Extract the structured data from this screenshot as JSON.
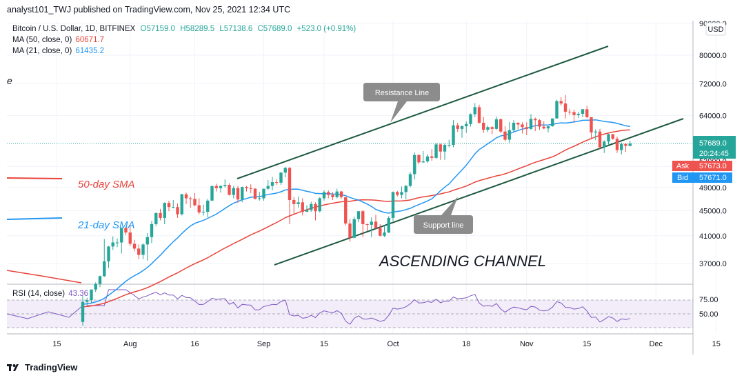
{
  "header": {
    "published": "analyst101_TWJ published on TradingView.com, Nov 25, 2021 12:34 UTC"
  },
  "legend": {
    "symbol": "Bitcoin / U.S. Dollar, 1D, BITFINEX",
    "open": "O57159.0",
    "high": "H58289.5",
    "low": "L57138.6",
    "close": "C57689.0",
    "change": "+523.0 (+0.91%)",
    "ma50_label": "MA (50, close, 0)",
    "ma50_value": "60671.7",
    "ma21_label": "MA (21, close, 0)",
    "ma21_value": "61435.2",
    "rsi_label": "RSI (14, close)",
    "rsi_value": "43.36"
  },
  "price_scale": {
    "currency": "USD",
    "price_tag": "57689.0",
    "countdown": "20:24:45",
    "ask_label": "Ask",
    "ask_value": "57673.0",
    "bid_label": "Bid",
    "bid_value": "57671.0"
  },
  "annotations": {
    "resistance": "Resistance Line",
    "support": "Support line",
    "channel": "ASCENDING CHANNEL",
    "sma50": "50-day SMA",
    "sma21": "21-day SMA"
  },
  "colors": {
    "up": "#26a69a",
    "down": "#ef5350",
    "ma50": "#e8433a",
    "ma21": "#2196f3",
    "rsi": "#7e57c2",
    "channel": "#1e5a40",
    "ask": "#ef5350",
    "bid": "#2196f3",
    "price_tag": "#26a69a"
  },
  "footer": {
    "brand": "TradingView"
  },
  "chart_data": {
    "type": "candlestick",
    "title": "Bitcoin / U.S. Dollar, 1D, BITFINEX",
    "y_axis": {
      "ticks": [
        37000,
        41000,
        45000,
        49000,
        53000,
        57689,
        64000,
        72000,
        80000,
        90000
      ],
      "scale": "log"
    },
    "x_axis": {
      "ticks": [
        "15",
        "Aug",
        "16",
        "Sep",
        "15",
        "Oct",
        "18",
        "Nov",
        "15",
        "Dec",
        "15"
      ]
    },
    "rsi_axis": {
      "ticks": [
        50,
        75
      ]
    },
    "candles": [
      {
        "date": "2021-07-21",
        "o": 29800,
        "h": 32800,
        "l": 29400,
        "c": 32100
      },
      {
        "date": "2021-07-22",
        "o": 32100,
        "h": 32600,
        "l": 31700,
        "c": 32300
      },
      {
        "date": "2021-07-23",
        "o": 32300,
        "h": 33600,
        "l": 31900,
        "c": 33600
      },
      {
        "date": "2021-07-24",
        "o": 33600,
        "h": 34500,
        "l": 33300,
        "c": 34300
      },
      {
        "date": "2021-07-25",
        "o": 34300,
        "h": 35400,
        "l": 33900,
        "c": 35300
      },
      {
        "date": "2021-07-26",
        "o": 35300,
        "h": 40500,
        "l": 35200,
        "c": 37300
      },
      {
        "date": "2021-07-27",
        "o": 37300,
        "h": 39500,
        "l": 36400,
        "c": 39400
      },
      {
        "date": "2021-07-28",
        "o": 39400,
        "h": 40900,
        "l": 38900,
        "c": 40000
      },
      {
        "date": "2021-07-29",
        "o": 40000,
        "h": 40600,
        "l": 39300,
        "c": 40000
      },
      {
        "date": "2021-07-30",
        "o": 40000,
        "h": 42300,
        "l": 38400,
        "c": 42200
      },
      {
        "date": "2021-07-31",
        "o": 42200,
        "h": 42400,
        "l": 41100,
        "c": 41500
      },
      {
        "date": "2021-08-01",
        "o": 41500,
        "h": 42600,
        "l": 39500,
        "c": 39800
      },
      {
        "date": "2021-08-02",
        "o": 39800,
        "h": 40400,
        "l": 38700,
        "c": 39100
      },
      {
        "date": "2021-08-03",
        "o": 39100,
        "h": 39700,
        "l": 37600,
        "c": 38200
      },
      {
        "date": "2021-08-04",
        "o": 38200,
        "h": 39900,
        "l": 37600,
        "c": 39700
      },
      {
        "date": "2021-08-05",
        "o": 39700,
        "h": 41400,
        "l": 37400,
        "c": 40800
      },
      {
        "date": "2021-08-06",
        "o": 40800,
        "h": 43300,
        "l": 39900,
        "c": 42800
      },
      {
        "date": "2021-08-07",
        "o": 42800,
        "h": 44700,
        "l": 42500,
        "c": 44600
      },
      {
        "date": "2021-08-08",
        "o": 44600,
        "h": 45300,
        "l": 43400,
        "c": 43800
      },
      {
        "date": "2021-08-09",
        "o": 43800,
        "h": 46400,
        "l": 42800,
        "c": 46300
      },
      {
        "date": "2021-08-10",
        "o": 46300,
        "h": 46700,
        "l": 44900,
        "c": 45600
      },
      {
        "date": "2021-08-11",
        "o": 45600,
        "h": 46800,
        "l": 45400,
        "c": 45600
      },
      {
        "date": "2021-08-12",
        "o": 45600,
        "h": 46200,
        "l": 43800,
        "c": 44400
      },
      {
        "date": "2021-08-13",
        "o": 44400,
        "h": 47900,
        "l": 44200,
        "c": 47800
      },
      {
        "date": "2021-08-14",
        "o": 47800,
        "h": 48100,
        "l": 46100,
        "c": 47100
      },
      {
        "date": "2021-08-15",
        "o": 47100,
        "h": 47400,
        "l": 45500,
        "c": 47000
      },
      {
        "date": "2021-08-16",
        "o": 47000,
        "h": 48000,
        "l": 45700,
        "c": 45900
      },
      {
        "date": "2021-08-17",
        "o": 45900,
        "h": 47100,
        "l": 44400,
        "c": 44700
      },
      {
        "date": "2021-08-18",
        "o": 44700,
        "h": 46000,
        "l": 44200,
        "c": 44800
      },
      {
        "date": "2021-08-19",
        "o": 44800,
        "h": 47000,
        "l": 43900,
        "c": 46700
      },
      {
        "date": "2021-08-20",
        "o": 46700,
        "h": 49300,
        "l": 46600,
        "c": 49300
      },
      {
        "date": "2021-08-21",
        "o": 49300,
        "h": 49700,
        "l": 48300,
        "c": 48900
      },
      {
        "date": "2021-08-22",
        "o": 48900,
        "h": 49400,
        "l": 48100,
        "c": 49300
      },
      {
        "date": "2021-08-23",
        "o": 49300,
        "h": 50500,
        "l": 49000,
        "c": 49500
      },
      {
        "date": "2021-08-24",
        "o": 49500,
        "h": 49800,
        "l": 47600,
        "c": 47700
      },
      {
        "date": "2021-08-25",
        "o": 47700,
        "h": 49300,
        "l": 47100,
        "c": 48900
      },
      {
        "date": "2021-08-26",
        "o": 48900,
        "h": 49300,
        "l": 46300,
        "c": 46900
      },
      {
        "date": "2021-08-27",
        "o": 46900,
        "h": 49200,
        "l": 46400,
        "c": 49100
      },
      {
        "date": "2021-08-28",
        "o": 49100,
        "h": 49300,
        "l": 48300,
        "c": 48900
      },
      {
        "date": "2021-08-29",
        "o": 48900,
        "h": 49600,
        "l": 48000,
        "c": 48800
      },
      {
        "date": "2021-08-30",
        "o": 48800,
        "h": 48900,
        "l": 46900,
        "c": 47000
      },
      {
        "date": "2021-08-31",
        "o": 47000,
        "h": 48200,
        "l": 46700,
        "c": 47100
      },
      {
        "date": "2021-09-01",
        "o": 47100,
        "h": 48800,
        "l": 46700,
        "c": 48800
      },
      {
        "date": "2021-09-02",
        "o": 48800,
        "h": 50400,
        "l": 48600,
        "c": 49300
      },
      {
        "date": "2021-09-03",
        "o": 49300,
        "h": 51000,
        "l": 48500,
        "c": 50000
      },
      {
        "date": "2021-09-04",
        "o": 50000,
        "h": 50500,
        "l": 49500,
        "c": 49900
      },
      {
        "date": "2021-09-05",
        "o": 49900,
        "h": 51900,
        "l": 49500,
        "c": 51800
      },
      {
        "date": "2021-09-06",
        "o": 51800,
        "h": 52900,
        "l": 50900,
        "c": 52700
      },
      {
        "date": "2021-09-07",
        "o": 52700,
        "h": 52900,
        "l": 42800,
        "c": 46800
      },
      {
        "date": "2021-09-08",
        "o": 46800,
        "h": 47300,
        "l": 44400,
        "c": 46100
      },
      {
        "date": "2021-09-09",
        "o": 46100,
        "h": 47400,
        "l": 45500,
        "c": 46400
      },
      {
        "date": "2021-09-10",
        "o": 46400,
        "h": 47100,
        "l": 44200,
        "c": 44800
      },
      {
        "date": "2021-09-11",
        "o": 44800,
        "h": 45900,
        "l": 44800,
        "c": 45100
      },
      {
        "date": "2021-09-12",
        "o": 45100,
        "h": 46500,
        "l": 44800,
        "c": 46100
      },
      {
        "date": "2021-09-13",
        "o": 46100,
        "h": 46400,
        "l": 43400,
        "c": 44900
      },
      {
        "date": "2021-09-14",
        "o": 44900,
        "h": 47300,
        "l": 44700,
        "c": 47100
      },
      {
        "date": "2021-09-15",
        "o": 47100,
        "h": 48500,
        "l": 46700,
        "c": 48200
      },
      {
        "date": "2021-09-16",
        "o": 48200,
        "h": 48500,
        "l": 47100,
        "c": 47700
      },
      {
        "date": "2021-09-17",
        "o": 47700,
        "h": 48200,
        "l": 46800,
        "c": 47300
      },
      {
        "date": "2021-09-18",
        "o": 47300,
        "h": 48800,
        "l": 47100,
        "c": 48300
      },
      {
        "date": "2021-09-19",
        "o": 48300,
        "h": 48400,
        "l": 47000,
        "c": 47300
      },
      {
        "date": "2021-09-20",
        "o": 47300,
        "h": 47300,
        "l": 42600,
        "c": 42900
      },
      {
        "date": "2021-09-21",
        "o": 42900,
        "h": 43600,
        "l": 40100,
        "c": 40700
      },
      {
        "date": "2021-09-22",
        "o": 40700,
        "h": 44000,
        "l": 40600,
        "c": 43600
      },
      {
        "date": "2021-09-23",
        "o": 43600,
        "h": 44900,
        "l": 43100,
        "c": 44900
      },
      {
        "date": "2021-09-24",
        "o": 44900,
        "h": 45100,
        "l": 40800,
        "c": 42800
      },
      {
        "date": "2021-09-25",
        "o": 42800,
        "h": 42900,
        "l": 41700,
        "c": 42700
      },
      {
        "date": "2021-09-26",
        "o": 42700,
        "h": 43900,
        "l": 40800,
        "c": 43200
      },
      {
        "date": "2021-09-27",
        "o": 43200,
        "h": 44300,
        "l": 42100,
        "c": 42200
      },
      {
        "date": "2021-09-28",
        "o": 42200,
        "h": 42800,
        "l": 40900,
        "c": 41000
      },
      {
        "date": "2021-09-29",
        "o": 41000,
        "h": 42600,
        "l": 40800,
        "c": 41500
      },
      {
        "date": "2021-09-30",
        "o": 41500,
        "h": 44100,
        "l": 41400,
        "c": 43800
      },
      {
        "date": "2021-10-01",
        "o": 43800,
        "h": 48300,
        "l": 43300,
        "c": 48200
      },
      {
        "date": "2021-10-02",
        "o": 48200,
        "h": 48400,
        "l": 47400,
        "c": 47700
      },
      {
        "date": "2021-10-03",
        "o": 47700,
        "h": 49200,
        "l": 47100,
        "c": 48200
      },
      {
        "date": "2021-10-04",
        "o": 48200,
        "h": 49500,
        "l": 46900,
        "c": 49300
      },
      {
        "date": "2021-10-05",
        "o": 49300,
        "h": 51900,
        "l": 49100,
        "c": 51500
      },
      {
        "date": "2021-10-06",
        "o": 51500,
        "h": 55800,
        "l": 50500,
        "c": 55300
      },
      {
        "date": "2021-10-07",
        "o": 55300,
        "h": 55400,
        "l": 53400,
        "c": 53800
      },
      {
        "date": "2021-10-08",
        "o": 53800,
        "h": 56100,
        "l": 53700,
        "c": 54000
      },
      {
        "date": "2021-10-09",
        "o": 54000,
        "h": 55500,
        "l": 53700,
        "c": 55000
      },
      {
        "date": "2021-10-10",
        "o": 55000,
        "h": 56500,
        "l": 54100,
        "c": 54700
      },
      {
        "date": "2021-10-11",
        "o": 54700,
        "h": 57800,
        "l": 54500,
        "c": 57500
      },
      {
        "date": "2021-10-12",
        "o": 57500,
        "h": 57700,
        "l": 54300,
        "c": 56000
      },
      {
        "date": "2021-10-13",
        "o": 56000,
        "h": 57700,
        "l": 54300,
        "c": 57400
      },
      {
        "date": "2021-10-14",
        "o": 57400,
        "h": 58500,
        "l": 56900,
        "c": 57400
      },
      {
        "date": "2021-10-15",
        "o": 57400,
        "h": 62900,
        "l": 56900,
        "c": 61700
      },
      {
        "date": "2021-10-16",
        "o": 61700,
        "h": 62300,
        "l": 60200,
        "c": 60900
      },
      {
        "date": "2021-10-17",
        "o": 60900,
        "h": 61700,
        "l": 58900,
        "c": 61500
      },
      {
        "date": "2021-10-18",
        "o": 61500,
        "h": 62600,
        "l": 60000,
        "c": 62000
      },
      {
        "date": "2021-10-19",
        "o": 62000,
        "h": 64500,
        "l": 61400,
        "c": 64300
      },
      {
        "date": "2021-10-20",
        "o": 64300,
        "h": 67000,
        "l": 63600,
        "c": 66000
      },
      {
        "date": "2021-10-21",
        "o": 66000,
        "h": 66600,
        "l": 62100,
        "c": 62300
      },
      {
        "date": "2021-10-22",
        "o": 62300,
        "h": 63700,
        "l": 60000,
        "c": 60700
      },
      {
        "date": "2021-10-23",
        "o": 60700,
        "h": 61700,
        "l": 60200,
        "c": 61300
      },
      {
        "date": "2021-10-24",
        "o": 61300,
        "h": 61500,
        "l": 59700,
        "c": 60900
      },
      {
        "date": "2021-10-25",
        "o": 60900,
        "h": 63700,
        "l": 60700,
        "c": 63100
      },
      {
        "date": "2021-10-26",
        "o": 63100,
        "h": 63300,
        "l": 60000,
        "c": 60300
      },
      {
        "date": "2021-10-27",
        "o": 60300,
        "h": 61500,
        "l": 58100,
        "c": 58500
      },
      {
        "date": "2021-10-28",
        "o": 58500,
        "h": 62500,
        "l": 57800,
        "c": 60600
      },
      {
        "date": "2021-10-29",
        "o": 60600,
        "h": 62900,
        "l": 60300,
        "c": 62300
      },
      {
        "date": "2021-10-30",
        "o": 62300,
        "h": 62400,
        "l": 60800,
        "c": 61900
      },
      {
        "date": "2021-10-31",
        "o": 61900,
        "h": 62400,
        "l": 59900,
        "c": 61300
      },
      {
        "date": "2021-11-01",
        "o": 61300,
        "h": 62400,
        "l": 59500,
        "c": 60900
      },
      {
        "date": "2021-11-02",
        "o": 60900,
        "h": 64300,
        "l": 60700,
        "c": 63200
      },
      {
        "date": "2021-11-03",
        "o": 63200,
        "h": 63500,
        "l": 60400,
        "c": 62900
      },
      {
        "date": "2021-11-04",
        "o": 62900,
        "h": 63100,
        "l": 60700,
        "c": 61400
      },
      {
        "date": "2021-11-05",
        "o": 61400,
        "h": 62600,
        "l": 60800,
        "c": 61000
      },
      {
        "date": "2021-11-06",
        "o": 61000,
        "h": 61500,
        "l": 60100,
        "c": 61500
      },
      {
        "date": "2021-11-07",
        "o": 61500,
        "h": 63300,
        "l": 61400,
        "c": 63300
      },
      {
        "date": "2021-11-08",
        "o": 63300,
        "h": 67800,
        "l": 63300,
        "c": 67500
      },
      {
        "date": "2021-11-09",
        "o": 67500,
        "h": 68500,
        "l": 66400,
        "c": 66900
      },
      {
        "date": "2021-11-10",
        "o": 66900,
        "h": 69000,
        "l": 63300,
        "c": 64900
      },
      {
        "date": "2021-11-11",
        "o": 64900,
        "h": 65600,
        "l": 64100,
        "c": 64800
      },
      {
        "date": "2021-11-12",
        "o": 64800,
        "h": 65400,
        "l": 62300,
        "c": 64100
      },
      {
        "date": "2021-11-13",
        "o": 64100,
        "h": 64900,
        "l": 63400,
        "c": 64400
      },
      {
        "date": "2021-11-14",
        "o": 64400,
        "h": 65500,
        "l": 63600,
        "c": 65500
      },
      {
        "date": "2021-11-15",
        "o": 65500,
        "h": 66300,
        "l": 63400,
        "c": 63600
      },
      {
        "date": "2021-11-16",
        "o": 63600,
        "h": 63600,
        "l": 58600,
        "c": 60100
      },
      {
        "date": "2021-11-17",
        "o": 60100,
        "h": 60800,
        "l": 58400,
        "c": 60300
      },
      {
        "date": "2021-11-18",
        "o": 60300,
        "h": 60900,
        "l": 56500,
        "c": 56900
      },
      {
        "date": "2021-11-19",
        "o": 56900,
        "h": 58400,
        "l": 55700,
        "c": 58100
      },
      {
        "date": "2021-11-20",
        "o": 58100,
        "h": 59800,
        "l": 57500,
        "c": 59700
      },
      {
        "date": "2021-11-21",
        "o": 59700,
        "h": 59800,
        "l": 58500,
        "c": 58700
      },
      {
        "date": "2021-11-22",
        "o": 58700,
        "h": 59200,
        "l": 55700,
        "c": 56300
      },
      {
        "date": "2021-11-23",
        "o": 56300,
        "h": 57900,
        "l": 55400,
        "c": 57600
      },
      {
        "date": "2021-11-24",
        "o": 57600,
        "h": 57800,
        "l": 55900,
        "c": 57200
      },
      {
        "date": "2021-11-25",
        "o": 57159,
        "h": 58289.5,
        "l": 57138.6,
        "c": 57689
      }
    ]
  }
}
